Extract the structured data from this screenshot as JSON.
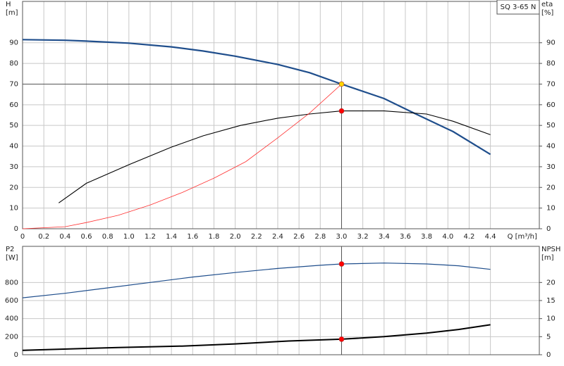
{
  "chart_data": [
    {
      "type": "line",
      "title": "SQ 3-65 N",
      "ylabel": "H",
      "yunit": "[m]",
      "y2label": "eta",
      "y2unit": "[%]",
      "xlabel": "Q [m³/h]",
      "xlim": [
        0,
        4.86
      ],
      "ylim": [
        0,
        110
      ],
      "y2lim": [
        0,
        110
      ],
      "xticks": [
        0,
        0.2,
        0.4,
        0.6,
        0.8,
        {
          "value": 1,
          "label": "1.0"
        },
        1.2,
        1.4,
        1.6,
        1.8,
        {
          "value": 2,
          "label": "2.0"
        },
        2.2,
        2.4,
        2.6,
        2.8,
        {
          "value": 3,
          "label": "3.0"
        },
        3.2,
        3.4,
        3.6,
        3.8,
        {
          "value": 4,
          "label": "4.0"
        },
        4.2,
        4.4
      ],
      "yticks": [
        0,
        10,
        20,
        30,
        40,
        50,
        60,
        70,
        80,
        90
      ],
      "y2ticks": [
        0,
        10,
        20,
        30,
        40,
        50,
        60,
        70,
        80,
        90
      ],
      "grid": true,
      "crosshair": {
        "x": 3.0,
        "y": 70,
        "color": "#555555"
      },
      "series": [
        {
          "color": "#1f4e8c",
          "width": 2.2,
          "x": [
            0,
            0.4,
            0.6,
            1.0,
            1.4,
            1.7,
            2.0,
            2.4,
            2.7,
            3.0,
            3.4,
            3.7,
            4.05,
            4.4
          ],
          "values": [
            91.5,
            91.2,
            90.8,
            89.8,
            88,
            86,
            83.5,
            79.5,
            75.5,
            70,
            63,
            55.5,
            47,
            36
          ]
        },
        {
          "color": "#000000",
          "width": 1.1,
          "axis": "y2",
          "x": [
            0.34,
            0.6,
            1.0,
            1.4,
            1.7,
            2.05,
            2.4,
            2.7,
            3.0,
            3.4,
            3.8,
            4.05,
            4.4
          ],
          "values": [
            12.5,
            22,
            31,
            39.5,
            45,
            50,
            53.5,
            55.5,
            57,
            57,
            55.5,
            52,
            45.5
          ]
        },
        {
          "color": "#ff3030",
          "width": 0.8,
          "x": [
            0,
            0.4,
            0.6,
            0.9,
            1.2,
            1.5,
            1.8,
            2.1,
            2.4,
            2.7,
            3.0
          ],
          "values": [
            0,
            1,
            3,
            6.5,
            11.5,
            17.5,
            24.5,
            32.5,
            44,
            56,
            70
          ]
        }
      ],
      "points": [
        {
          "x": 3.0,
          "y": 70,
          "color": "#ffd700"
        },
        {
          "x": 3.0,
          "y": 57,
          "color": "#ff0000",
          "axis": "y2"
        }
      ]
    },
    {
      "type": "line",
      "ylabel": "P2",
      "yunit": "[W]",
      "y2label": "NPSH",
      "y2unit": "[m]",
      "xlim": [
        0,
        4.86
      ],
      "ylim": [
        0,
        1200
      ],
      "y2lim": [
        0,
        30
      ],
      "yticks": [
        0,
        200,
        400,
        600,
        800
      ],
      "y2ticks": [
        0,
        5,
        10,
        15,
        20
      ],
      "grid": true,
      "crosshair": {
        "x": 3.0,
        "color": "#555555"
      },
      "series": [
        {
          "color": "#1f4e8c",
          "width": 1.2,
          "x": [
            0,
            0.4,
            0.8,
            1.2,
            1.6,
            2.0,
            2.4,
            2.8,
            3.0,
            3.4,
            3.8,
            4.1,
            4.4
          ],
          "values": [
            630,
            680,
            740,
            800,
            860,
            910,
            955,
            990,
            1005,
            1015,
            1005,
            985,
            945
          ]
        },
        {
          "color": "#000000",
          "width": 2,
          "axis": "y2",
          "x": [
            0,
            0.9,
            1.5,
            2.0,
            2.5,
            3.0,
            3.4,
            3.8,
            4.1,
            4.4
          ],
          "values": [
            1.2,
            2.0,
            2.4,
            3.0,
            3.8,
            4.3,
            5.0,
            6.0,
            7.0,
            8.3
          ]
        }
      ],
      "points": [
        {
          "x": 3.0,
          "y": 1005,
          "color": "#ff0000"
        },
        {
          "x": 3.0,
          "y": 4.3,
          "color": "#ff0000",
          "axis": "y2"
        }
      ]
    }
  ]
}
